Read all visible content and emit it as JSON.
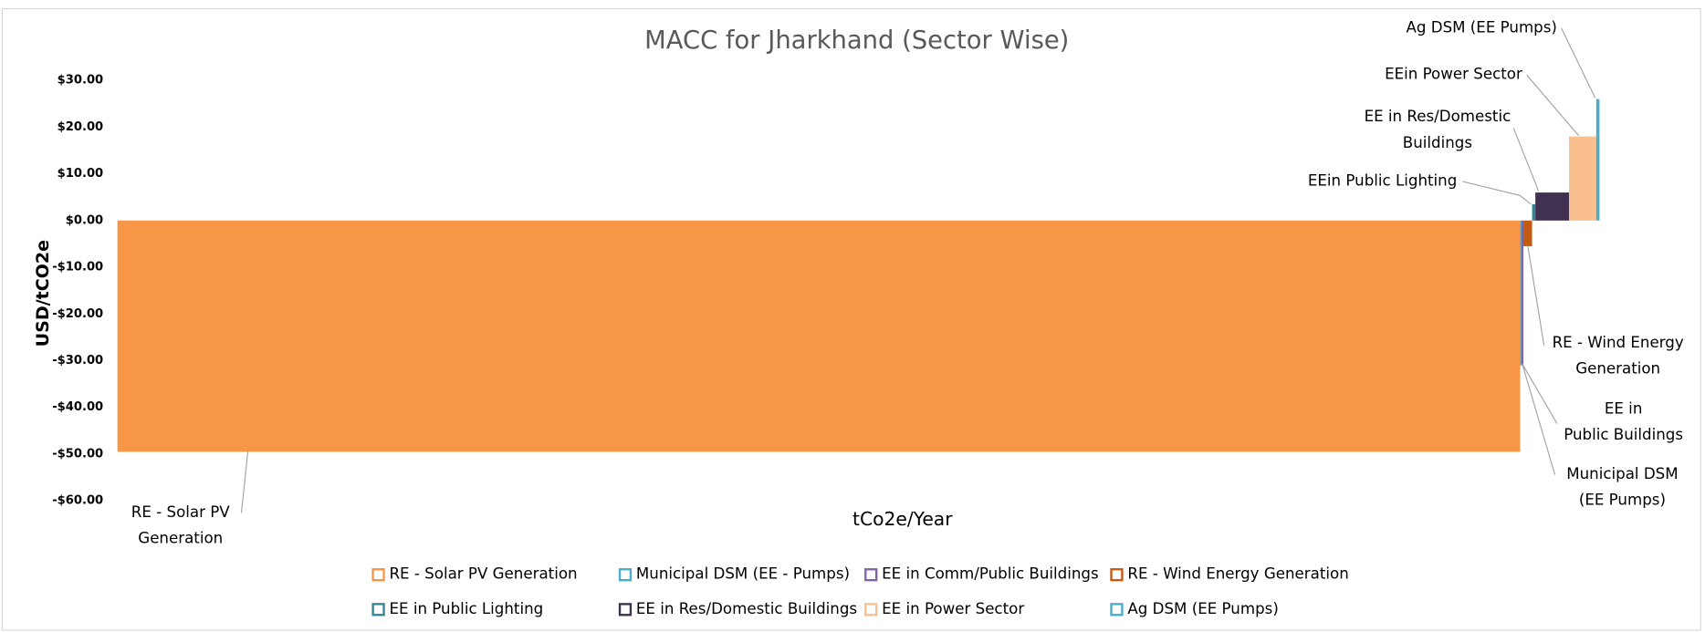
{
  "chart_data": {
    "type": "macc",
    "title": "MACC for Jharkhand (Sector Wise)",
    "x_label": "tCo2e/Year",
    "y_label": "USD/tCO2e",
    "xlim": [
      0,
      1363
    ],
    "ylim": [
      -60,
      30
    ],
    "yticks": [
      {
        "value": 30,
        "label": "$30.00"
      },
      {
        "value": 20,
        "label": "$20.00"
      },
      {
        "value": 10,
        "label": "$10.00"
      },
      {
        "value": 0,
        "label": "$0.00"
      },
      {
        "value": -10,
        "label": "-$10.00"
      },
      {
        "value": -20,
        "label": "-$20.00"
      },
      {
        "value": -30,
        "label": "-$30.00"
      },
      {
        "value": -40,
        "label": "-$40.00"
      },
      {
        "value": -50,
        "label": "-$50.00"
      },
      {
        "value": -60,
        "label": "-$60.00"
      }
    ],
    "series": [
      {
        "name": "RE - Solar PV Generation",
        "color": "#f79646",
        "value": -49.5,
        "width": 1290
      },
      {
        "name": "Municipal DSM (EE - Pumps)",
        "color": "#4bacc6",
        "value": -31,
        "width": 1
      },
      {
        "name": "EE in Comm/Public Buildings",
        "color": "#8064a2",
        "value": -31,
        "width": 2
      },
      {
        "name": "RE - Wind Energy Generation",
        "color": "#c55a11",
        "value": -5.5,
        "width": 8
      },
      {
        "name": "EE in Public Lighting",
        "color": "#31859c",
        "value": 3.5,
        "width": 3
      },
      {
        "name": "EE in Res/Domestic Buildings",
        "color": "#403151",
        "value": 6,
        "width": 31
      },
      {
        "name": "EE in Power Sector",
        "color": "#fabf8f",
        "value": 18,
        "width": 25
      },
      {
        "name": "Ag DSM (EE Pumps)",
        "color": "#4bacc6",
        "value": 26,
        "width": 3
      }
    ],
    "annotations": [
      {
        "lines": [
          "RE - Solar PV",
          "Generation"
        ]
      },
      {
        "lines": [
          "Municipal DSM",
          "(EE Pumps)"
        ]
      },
      {
        "lines": [
          "EE in",
          "Public Buildings"
        ]
      },
      {
        "lines": [
          "RE - Wind Energy",
          "Generation"
        ]
      },
      {
        "lines": [
          "EEin Public Lighting"
        ]
      },
      {
        "lines": [
          "EE in Res/Domestic",
          "Buildings"
        ]
      },
      {
        "lines": [
          "EEin Power Sector"
        ]
      },
      {
        "lines": [
          "Ag DSM (EE Pumps)"
        ]
      }
    ]
  }
}
